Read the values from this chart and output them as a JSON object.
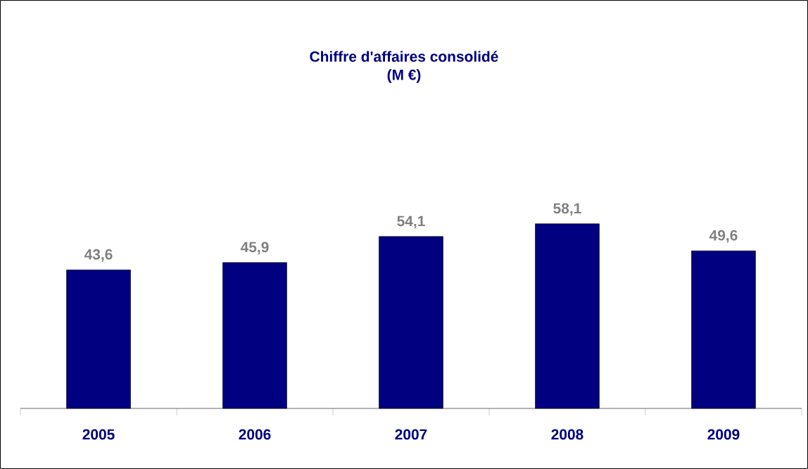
{
  "chart_data": {
    "type": "bar",
    "title": "Chiffre d'affaires consolidé",
    "subtitle": "(M €)",
    "categories": [
      "2005",
      "2006",
      "2007",
      "2008",
      "2009"
    ],
    "values": [
      43.6,
      45.9,
      54.1,
      58.1,
      49.6
    ],
    "value_labels": [
      "43,6",
      "45,9",
      "54,1",
      "58,1",
      "49,6"
    ],
    "color": "#000080"
  }
}
